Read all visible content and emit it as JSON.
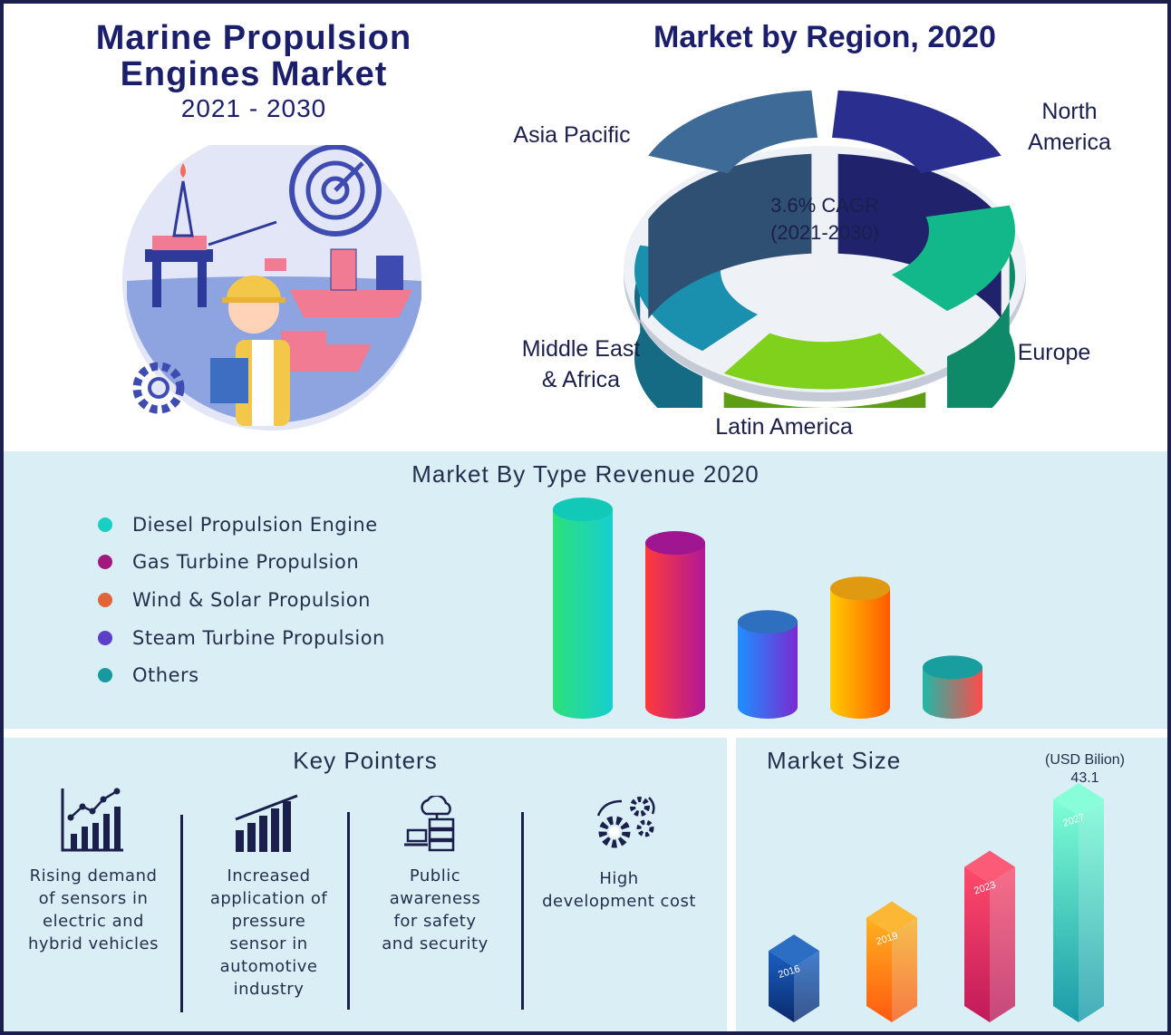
{
  "header": {
    "title": "Marine Propulsion\nEngines Market",
    "years": "2021 - 2030"
  },
  "region": {
    "title": "Market by Region, 2020",
    "cagr_line1": "3.6% CAGR",
    "cagr_line2": "(2021-2030)",
    "labels": {
      "north_america": "North\nAmerica",
      "europe": "Europe",
      "latin_america": "Latin America",
      "mea": "Middle East\n& Africa",
      "asia_pacific": "Asia Pacific"
    }
  },
  "type_section": {
    "title": "Market By Type Revenue 2020"
  },
  "key_pointers": {
    "title": "Key Pointers",
    "items": [
      {
        "text": "Rising demand\nof sensors in\nelectric and\nhybrid vehicles",
        "icon": "line-growth-chart-icon"
      },
      {
        "text": "Increased\napplication of\npressure\nsensor in\nautomotive\nindustry",
        "icon": "bar-growth-chart-icon"
      },
      {
        "text": "Public\nawareness\nfor safety\nand security",
        "icon": "cloud-server-icon"
      },
      {
        "text": "High\ndevelopment cost",
        "icon": "gears-icon"
      }
    ]
  },
  "market_size": {
    "title": "Market Size",
    "unit": "(USD Bilion)",
    "value_label": "43.1"
  },
  "chart_data": [
    {
      "type": "pie",
      "title": "Market by Region, 2020",
      "categories": [
        "North America",
        "Europe",
        "Latin America",
        "Middle East & Africa",
        "Asia Pacific"
      ],
      "heights_relative": [
        1.0,
        0.82,
        0.55,
        0.62,
        1.0
      ],
      "colors": [
        "#2a2f8f",
        "#13b88a",
        "#7fd11b",
        "#1a8fae",
        "#3e6a98"
      ]
    },
    {
      "type": "bar",
      "title": "Market By Type Revenue 2020",
      "categories": [
        "Diesel Propulsion Engine",
        "Gas Turbine Propulsion",
        "Wind & Solar Propulsion",
        "Steam Turbine Propulsion",
        "Others"
      ],
      "values": [
        100,
        83,
        43,
        60,
        20
      ],
      "legend_colors": [
        "#19cfc4",
        "#a3187e",
        "#e0663a",
        "#5b3ec9",
        "#179a9f"
      ],
      "gradients": [
        [
          "#2de07a",
          "#16cfd0"
        ],
        [
          "#ff3b3b",
          "#b01896"
        ],
        [
          "#1e90ff",
          "#7a2ad0"
        ],
        [
          "#ffcc00",
          "#ff5a00"
        ],
        [
          "#1fb9a5",
          "#ff4a4a"
        ]
      ],
      "top_colors": [
        "#12c8b6",
        "#a01590",
        "#2f6fc0",
        "#e09a12",
        "#189e9f"
      ],
      "legend_position": "left"
    },
    {
      "type": "bar",
      "title": "Market Size",
      "categories": [
        "2016",
        "2019",
        "2023",
        "2027"
      ],
      "values": [
        11.5,
        18.4,
        29.0,
        43.1
      ],
      "ylabel": "(USD Bilion)",
      "colors": [
        [
          "#1a5fc0",
          "#0b2a6e"
        ],
        [
          "#ffb020",
          "#ff5a10"
        ],
        [
          "#ff4a6a",
          "#c01a5a"
        ],
        [
          "#7dffd5",
          "#1a9aa8"
        ]
      ]
    }
  ]
}
